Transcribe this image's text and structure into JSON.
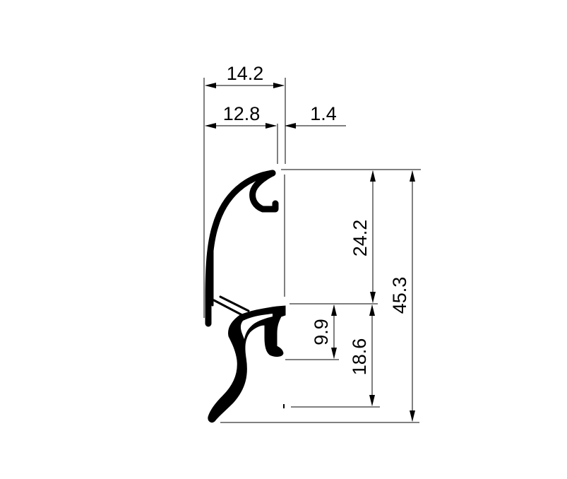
{
  "drawing": {
    "dimensions": {
      "overall_width": "14.2",
      "inner_width": "12.8",
      "lip_width": "1.4",
      "upper_height": "24.2",
      "overall_height": "45.3",
      "hook_height": "9.9",
      "lower_height": "18.6"
    },
    "colors": {
      "line": "#000000",
      "background": "#ffffff"
    }
  }
}
